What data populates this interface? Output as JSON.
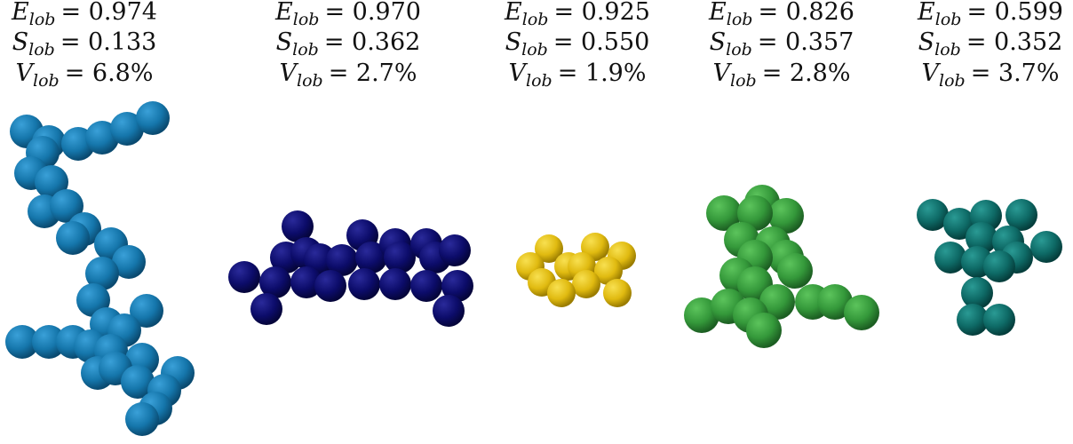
{
  "panels": [
    {
      "lines": [
        {
          "symbol": "E",
          "subscript": "lob",
          "value": "= 0.974"
        },
        {
          "symbol": "S",
          "subscript": "lob",
          "value": "= 0.133"
        },
        {
          "symbol": "V",
          "subscript": "lob",
          "value": "= 6.8%"
        }
      ]
    },
    {
      "lines": [
        {
          "symbol": "E",
          "subscript": "lob",
          "value": "= 0.970"
        },
        {
          "symbol": "S",
          "subscript": "lob",
          "value": "= 0.362"
        },
        {
          "symbol": "V",
          "subscript": "lob",
          "value": "= 2.7%"
        }
      ]
    },
    {
      "lines": [
        {
          "symbol": "E",
          "subscript": "lob",
          "value": "= 0.925"
        },
        {
          "symbol": "S",
          "subscript": "lob",
          "value": "= 0.550"
        },
        {
          "symbol": "V",
          "subscript": "lob",
          "value": "= 1.9%"
        }
      ]
    },
    {
      "lines": [
        {
          "symbol": "E",
          "subscript": "lob",
          "value": "= 0.826"
        },
        {
          "symbol": "S",
          "subscript": "lob",
          "value": "= 0.357"
        },
        {
          "symbol": "V",
          "subscript": "lob",
          "value": "= 2.8%"
        }
      ]
    },
    {
      "lines": [
        {
          "symbol": "E",
          "subscript": "lob",
          "value": "= 0.599"
        },
        {
          "symbol": "S",
          "subscript": "lob",
          "value": "= 0.352"
        },
        {
          "symbol": "V",
          "subscript": "lob",
          "value": "= 3.7%"
        }
      ]
    }
  ]
}
